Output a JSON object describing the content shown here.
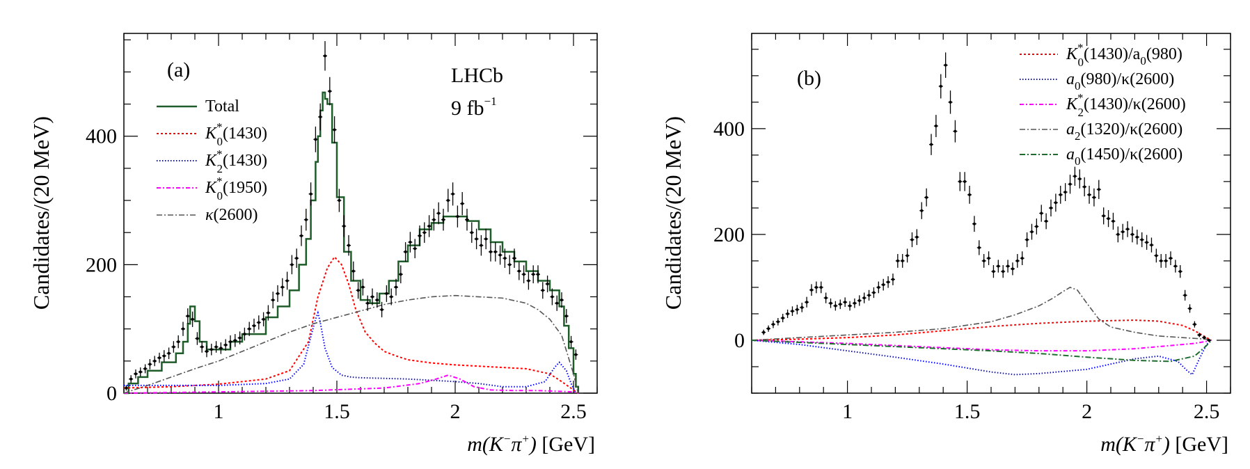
{
  "chart_data": [
    {
      "id": "a",
      "type": "line",
      "panel_label": "(a)",
      "experiment": "LHCb",
      "luminosity": {
        "base": "9 fb",
        "exp": "−1"
      },
      "xlabel_math": "m(K",
      "xlabel_sup1": "−",
      "xlabel_mid": "π",
      "xlabel_sup2": "+",
      "xlabel_close": ")",
      "xlabel_unit": " [GeV]",
      "ylabel": "Candidates/(20 MeV)",
      "xlim": [
        0.6,
        2.6
      ],
      "ylim": [
        0,
        560
      ],
      "xticks": [
        1,
        1.5,
        2,
        2.5
      ],
      "xtick_labels": [
        "1",
        "1.5",
        "2",
        "2.5"
      ],
      "yticks": [
        0,
        200,
        400
      ],
      "ytick_labels": [
        "0",
        "200",
        "400"
      ],
      "legend": [
        {
          "key": "total",
          "base": "Total",
          "sub": "",
          "sup": "",
          "rest": "",
          "color": "#1e5c2a",
          "dash": "",
          "width": 2.5
        },
        {
          "key": "k0_1430",
          "base": "K",
          "sub": "0",
          "sup": "*",
          "rest": "(1430)",
          "color": "#ff0000",
          "dash": "3,3",
          "width": 2
        },
        {
          "key": "k2_1430",
          "base": "K",
          "sub": "2",
          "sup": "*",
          "rest": "(1430)",
          "color": "#0000ff",
          "dash": "1.5,2.5",
          "width": 2
        },
        {
          "key": "k0_1950",
          "base": "K",
          "sub": "0",
          "sup": "*",
          "rest": "(1950)",
          "color": "#ff00ff",
          "dash": "6,3,2,3",
          "width": 2
        },
        {
          "key": "kappa",
          "base": "κ",
          "sub": "",
          "sup": "",
          "rest": "(2600)",
          "color": "#555555",
          "dash": "8,3,2,3",
          "width": 1.6
        }
      ],
      "data_x": [
        0.61,
        0.63,
        0.65,
        0.67,
        0.69,
        0.71,
        0.73,
        0.75,
        0.77,
        0.79,
        0.81,
        0.83,
        0.85,
        0.87,
        0.89,
        0.91,
        0.93,
        0.95,
        0.97,
        0.99,
        1.01,
        1.03,
        1.05,
        1.07,
        1.09,
        1.11,
        1.13,
        1.15,
        1.17,
        1.19,
        1.21,
        1.23,
        1.25,
        1.27,
        1.29,
        1.31,
        1.33,
        1.35,
        1.37,
        1.39,
        1.41,
        1.43,
        1.45,
        1.47,
        1.49,
        1.51,
        1.53,
        1.55,
        1.57,
        1.59,
        1.61,
        1.63,
        1.65,
        1.67,
        1.69,
        1.71,
        1.73,
        1.75,
        1.77,
        1.79,
        1.81,
        1.83,
        1.85,
        1.87,
        1.89,
        1.91,
        1.93,
        1.95,
        1.97,
        1.99,
        2.01,
        2.03,
        2.05,
        2.07,
        2.09,
        2.11,
        2.13,
        2.15,
        2.17,
        2.19,
        2.21,
        2.23,
        2.25,
        2.27,
        2.29,
        2.31,
        2.33,
        2.35,
        2.37,
        2.39,
        2.41,
        2.43,
        2.45,
        2.47,
        2.49,
        2.51
      ],
      "data_y": [
        8,
        22,
        30,
        33,
        38,
        45,
        50,
        55,
        58,
        62,
        72,
        80,
        100,
        120,
        115,
        85,
        72,
        65,
        68,
        72,
        70,
        75,
        80,
        82,
        86,
        92,
        100,
        105,
        110,
        115,
        125,
        145,
        155,
        165,
        175,
        200,
        210,
        245,
        270,
        310,
        395,
        430,
        525,
        470,
        410,
        300,
        260,
        230,
        190,
        160,
        165,
        140,
        150,
        145,
        130,
        155,
        150,
        165,
        185,
        220,
        235,
        225,
        245,
        250,
        260,
        270,
        280,
        270,
        300,
        310,
        275,
        295,
        270,
        250,
        240,
        230,
        240,
        220,
        220,
        215,
        210,
        200,
        210,
        190,
        185,
        175,
        185,
        185,
        160,
        170,
        150,
        140,
        145,
        120,
        80,
        60
      ],
      "data_err": [
        4,
        6,
        7,
        7,
        7,
        8,
        8,
        8,
        9,
        9,
        9,
        10,
        11,
        12,
        12,
        10,
        9,
        9,
        9,
        9,
        9,
        9,
        10,
        10,
        10,
        10,
        11,
        11,
        11,
        11,
        12,
        13,
        13,
        14,
        14,
        15,
        15,
        16,
        17,
        18,
        20,
        21,
        23,
        22,
        21,
        18,
        17,
        16,
        15,
        13,
        13,
        12,
        13,
        12,
        12,
        13,
        13,
        13,
        14,
        15,
        16,
        15,
        16,
        16,
        17,
        17,
        17,
        17,
        18,
        18,
        17,
        18,
        17,
        16,
        16,
        16,
        16,
        15,
        15,
        15,
        15,
        15,
        15,
        14,
        14,
        14,
        14,
        14,
        13,
        13,
        13,
        12,
        12,
        11,
        9,
        8
      ],
      "curves": {
        "total": {
          "x": [
            0.6,
            0.62,
            0.66,
            0.7,
            0.76,
            0.82,
            0.85,
            0.87,
            0.88,
            0.9,
            0.92,
            0.95,
            1.0,
            1.05,
            1.1,
            1.2,
            1.25,
            1.3,
            1.34,
            1.37,
            1.39,
            1.41,
            1.42,
            1.43,
            1.44,
            1.45,
            1.46,
            1.48,
            1.5,
            1.53,
            1.56,
            1.6,
            1.64,
            1.68,
            1.72,
            1.76,
            1.8,
            1.85,
            1.9,
            1.95,
            2.0,
            2.05,
            2.1,
            2.15,
            2.2,
            2.25,
            2.3,
            2.35,
            2.4,
            2.44,
            2.46,
            2.48,
            2.5,
            2.51,
            2.52
          ],
          "y": [
            0,
            15,
            25,
            35,
            48,
            62,
            80,
            108,
            135,
            112,
            80,
            68,
            68,
            80,
            92,
            118,
            135,
            160,
            200,
            240,
            300,
            360,
            400,
            440,
            468,
            458,
            450,
            390,
            305,
            220,
            175,
            145,
            140,
            155,
            175,
            205,
            230,
            255,
            265,
            275,
            275,
            268,
            255,
            235,
            220,
            205,
            190,
            175,
            160,
            135,
            105,
            70,
            30,
            10,
            0
          ]
        },
        "k0_1430": {
          "x": [
            0.6,
            0.8,
            1.0,
            1.2,
            1.3,
            1.38,
            1.42,
            1.46,
            1.49,
            1.52,
            1.55,
            1.58,
            1.62,
            1.66,
            1.7,
            1.75,
            1.8,
            1.9,
            2.0,
            2.1,
            2.2,
            2.3,
            2.4,
            2.45,
            2.5,
            2.52
          ],
          "y": [
            8,
            10,
            14,
            22,
            35,
            80,
            150,
            195,
            212,
            200,
            170,
            130,
            95,
            78,
            65,
            58,
            52,
            47,
            44,
            42,
            40,
            38,
            30,
            18,
            5,
            0
          ]
        },
        "k2_1430": {
          "x": [
            0.6,
            0.8,
            1.0,
            1.2,
            1.3,
            1.36,
            1.39,
            1.41,
            1.42,
            1.43,
            1.45,
            1.48,
            1.52,
            1.56,
            1.6,
            1.7,
            1.8,
            1.9,
            2.0,
            2.1,
            2.2,
            2.3,
            2.38,
            2.42,
            2.44,
            2.47,
            2.49,
            2.51
          ],
          "y": [
            12,
            12,
            12,
            15,
            22,
            45,
            88,
            115,
            125,
            110,
            70,
            40,
            28,
            25,
            24,
            23,
            22,
            20,
            18,
            15,
            10,
            10,
            18,
            40,
            48,
            35,
            15,
            0
          ]
        },
        "k0_1950": {
          "x": [
            0.6,
            1.0,
            1.4,
            1.7,
            1.85,
            1.92,
            1.97,
            2.02,
            2.08,
            2.15,
            2.25,
            2.35,
            2.5,
            2.52
          ],
          "y": [
            0,
            2,
            4,
            8,
            15,
            22,
            28,
            22,
            10,
            5,
            4,
            4,
            2,
            0
          ]
        },
        "kappa": {
          "x": [
            0.6,
            0.7,
            0.8,
            0.9,
            1.0,
            1.1,
            1.2,
            1.3,
            1.4,
            1.5,
            1.6,
            1.7,
            1.8,
            1.9,
            2.0,
            2.1,
            2.2,
            2.3,
            2.35,
            2.4,
            2.45,
            2.5,
            2.52
          ],
          "y": [
            0,
            12,
            25,
            38,
            50,
            65,
            80,
            95,
            108,
            118,
            128,
            138,
            145,
            150,
            152,
            150,
            148,
            140,
            130,
            115,
            90,
            30,
            0
          ]
        }
      }
    },
    {
      "id": "b",
      "type": "line",
      "panel_label": "(b)",
      "xlabel_math": "m(K",
      "xlabel_sup1": "−",
      "xlabel_mid": "π",
      "xlabel_sup2": "+",
      "xlabel_close": ")",
      "xlabel_unit": " [GeV]",
      "ylabel": "Candidates/(20 MeV)",
      "xlim": [
        0.6,
        2.6
      ],
      "ylim": [
        -100,
        580
      ],
      "xticks": [
        1,
        1.5,
        2,
        2.5
      ],
      "xtick_labels": [
        "1",
        "1.5",
        "2",
        "2.5"
      ],
      "yticks": [
        0,
        200,
        400
      ],
      "ytick_labels": [
        "0",
        "200",
        "400"
      ],
      "legend": [
        {
          "key": "k0_a0",
          "base": "K",
          "sub": "0",
          "sup": "*",
          "rest": "(1430)/a",
          "sub2": "0",
          "rest2": "(980)",
          "color": "#ff0000",
          "dash": "3,3",
          "width": 2
        },
        {
          "key": "a0_kappa",
          "base": "a",
          "sub": "0",
          "sup": "",
          "rest": "(980)/κ(2600)",
          "sub2": "",
          "rest2": "",
          "color": "#0000ff",
          "dash": "1.5,2.5",
          "width": 2
        },
        {
          "key": "k2_kappa",
          "base": "K",
          "sub": "2",
          "sup": "*",
          "rest": "(1430)/κ(2600)",
          "sub2": "",
          "rest2": "",
          "color": "#ff00ff",
          "dash": "6,3,2,3",
          "width": 2
        },
        {
          "key": "a2_kappa",
          "base": "a",
          "sub": "2",
          "sup": "",
          "rest": "(1320)/κ(2600)",
          "sub2": "",
          "rest2": "",
          "color": "#555555",
          "dash": "8,3,2,3",
          "width": 1.6
        },
        {
          "key": "a01450_kappa",
          "base": "a",
          "sub": "0",
          "sup": "",
          "rest": "(1450)/κ(2600)",
          "sub2": "",
          "rest2": "",
          "color": "#1e6b2e",
          "dash": "8,3,2,3",
          "width": 2
        }
      ],
      "data_x": [
        0.65,
        0.67,
        0.69,
        0.71,
        0.73,
        0.75,
        0.77,
        0.79,
        0.81,
        0.83,
        0.85,
        0.87,
        0.89,
        0.91,
        0.93,
        0.95,
        0.97,
        0.99,
        1.01,
        1.03,
        1.05,
        1.07,
        1.09,
        1.11,
        1.13,
        1.15,
        1.17,
        1.19,
        1.21,
        1.23,
        1.25,
        1.27,
        1.29,
        1.31,
        1.33,
        1.35,
        1.37,
        1.39,
        1.41,
        1.43,
        1.45,
        1.47,
        1.49,
        1.51,
        1.53,
        1.55,
        1.57,
        1.59,
        1.61,
        1.63,
        1.65,
        1.67,
        1.69,
        1.71,
        1.73,
        1.75,
        1.77,
        1.79,
        1.81,
        1.83,
        1.85,
        1.87,
        1.89,
        1.91,
        1.93,
        1.95,
        1.97,
        1.99,
        2.01,
        2.03,
        2.05,
        2.07,
        2.09,
        2.11,
        2.13,
        2.15,
        2.17,
        2.19,
        2.21,
        2.23,
        2.25,
        2.27,
        2.29,
        2.31,
        2.33,
        2.35,
        2.37,
        2.39,
        2.41,
        2.43,
        2.45,
        2.47,
        2.49,
        2.51
      ],
      "data_y": [
        15,
        22,
        30,
        35,
        42,
        50,
        55,
        58,
        62,
        72,
        95,
        100,
        100,
        80,
        70,
        65,
        68,
        72,
        65,
        70,
        75,
        80,
        85,
        90,
        100,
        105,
        110,
        115,
        150,
        150,
        160,
        190,
        195,
        245,
        270,
        370,
        405,
        480,
        520,
        450,
        395,
        300,
        300,
        275,
        220,
        175,
        150,
        155,
        130,
        140,
        130,
        140,
        135,
        150,
        155,
        190,
        205,
        215,
        240,
        225,
        250,
        260,
        275,
        280,
        295,
        310,
        305,
        290,
        275,
        270,
        285,
        235,
        230,
        225,
        200,
        205,
        210,
        200,
        195,
        190,
        185,
        180,
        160,
        150,
        150,
        155,
        140,
        130,
        85,
        60,
        30,
        10,
        5,
        0
      ],
      "data_err": [
        5,
        6,
        7,
        7,
        8,
        8,
        9,
        9,
        9,
        10,
        11,
        11,
        11,
        10,
        9,
        9,
        9,
        9,
        9,
        9,
        10,
        10,
        10,
        10,
        11,
        11,
        11,
        11,
        13,
        13,
        13,
        14,
        15,
        16,
        17,
        20,
        21,
        23,
        24,
        22,
        21,
        18,
        18,
        17,
        15,
        14,
        13,
        13,
        12,
        12,
        12,
        12,
        12,
        13,
        13,
        14,
        15,
        15,
        16,
        15,
        16,
        17,
        17,
        17,
        18,
        18,
        18,
        18,
        17,
        17,
        18,
        16,
        16,
        16,
        15,
        15,
        15,
        15,
        14,
        14,
        14,
        14,
        13,
        13,
        13,
        13,
        12,
        12,
        10,
        8,
        6,
        4,
        3,
        2
      ],
      "curves": {
        "k0_a0": {
          "x": [
            0.6,
            0.8,
            1.0,
            1.2,
            1.4,
            1.6,
            1.8,
            2.0,
            2.2,
            2.3,
            2.4,
            2.45,
            2.5,
            2.52
          ],
          "y": [
            0,
            2,
            5,
            10,
            18,
            26,
            32,
            36,
            38,
            36,
            28,
            18,
            5,
            0
          ]
        },
        "a0_kappa": {
          "x": [
            0.6,
            0.8,
            1.0,
            1.2,
            1.4,
            1.6,
            1.7,
            1.8,
            2.0,
            2.2,
            2.3,
            2.38,
            2.42,
            2.44,
            2.47,
            2.5,
            2.52
          ],
          "y": [
            0,
            -8,
            -20,
            -32,
            -45,
            -60,
            -65,
            -63,
            -55,
            -35,
            -30,
            -40,
            -58,
            -65,
            -35,
            -8,
            0
          ]
        },
        "k2_kappa": {
          "x": [
            0.6,
            0.8,
            1.0,
            1.2,
            1.4,
            1.6,
            1.8,
            2.0,
            2.2,
            2.35,
            2.45,
            2.5,
            2.52
          ],
          "y": [
            0,
            -3,
            -6,
            -10,
            -14,
            -18,
            -20,
            -20,
            -16,
            -10,
            -6,
            -2,
            0
          ]
        },
        "a2_kappa": {
          "x": [
            0.6,
            0.8,
            1.0,
            1.2,
            1.4,
            1.6,
            1.7,
            1.8,
            1.86,
            1.9,
            1.93,
            1.96,
            2.0,
            2.05,
            2.1,
            2.2,
            2.3,
            2.4,
            2.5,
            2.52
          ],
          "y": [
            0,
            5,
            10,
            15,
            22,
            35,
            48,
            65,
            80,
            92,
            100,
            95,
            70,
            40,
            25,
            15,
            8,
            5,
            2,
            0
          ]
        },
        "a01450_kappa": {
          "x": [
            0.6,
            0.8,
            1.0,
            1.2,
            1.4,
            1.6,
            1.8,
            2.0,
            2.2,
            2.35,
            2.45,
            2.5,
            2.52
          ],
          "y": [
            0,
            -4,
            -8,
            -12,
            -16,
            -20,
            -25,
            -32,
            -38,
            -40,
            -30,
            -10,
            0
          ]
        }
      }
    }
  ]
}
